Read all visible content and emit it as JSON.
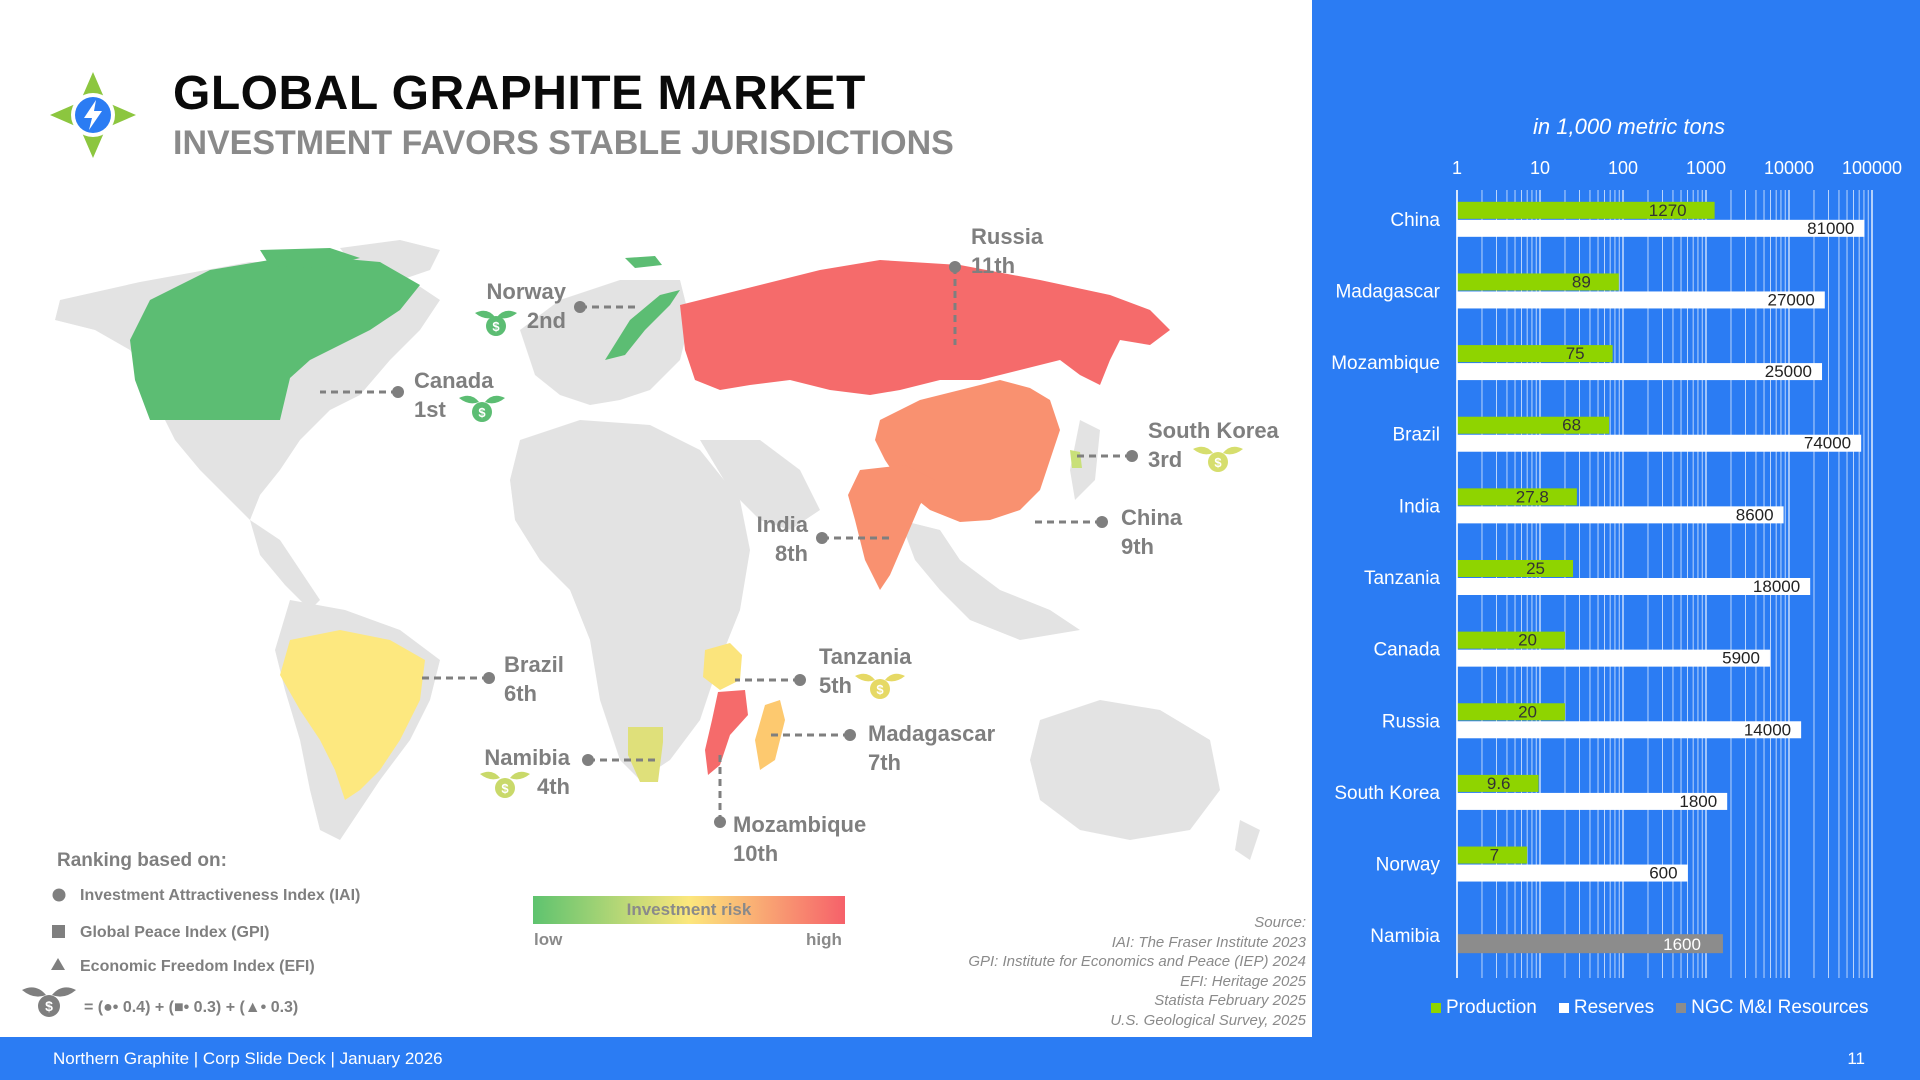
{
  "header": {
    "title": "GLOBAL GRAPHITE MARKET",
    "subtitle": "INVESTMENT FAVORS STABLE JURISDICTIONS"
  },
  "map": {
    "labels": [
      {
        "country": "Russia",
        "rank": "11th",
        "risk_color": "#f56b6b"
      },
      {
        "country": "Norway",
        "rank": "2nd",
        "risk_color": "#5cbd73"
      },
      {
        "country": "Canada",
        "rank": "1st",
        "risk_color": "#5cbd73"
      },
      {
        "country": "South Korea",
        "rank": "3rd",
        "risk_color": "#c9e07a"
      },
      {
        "country": "China",
        "rank": "9th",
        "risk_color": "#f99170"
      },
      {
        "country": "India",
        "rank": "8th",
        "risk_color": "#f99170"
      },
      {
        "country": "Tanzania",
        "rank": "5th",
        "risk_color": "#fbe47c"
      },
      {
        "country": "Brazil",
        "rank": "6th",
        "risk_color": "#fde87f"
      },
      {
        "country": "Namibia",
        "rank": "4th",
        "risk_color": "#dfe07a"
      },
      {
        "country": "Madagascar",
        "rank": "7th",
        "risk_color": "#fdc96f"
      },
      {
        "country": "Mozambique",
        "rank": "10th",
        "risk_color": "#f56b6b"
      }
    ]
  },
  "ranking": {
    "title": "Ranking based on:",
    "items": [
      {
        "icon": "circle-icon",
        "text": "Investment Attractiveness Index (IAI)"
      },
      {
        "icon": "square-icon",
        "text": "Global Peace Index (GPI)"
      },
      {
        "icon": "triangle-icon",
        "text": "Economic Freedom Index (EFI)"
      }
    ],
    "formula": "= (●• 0.4) + (■• 0.3) + (▲• 0.3)"
  },
  "risk_scale": {
    "label": "Investment risk",
    "low": "low",
    "high": "high",
    "colors": [
      "#5ec36f",
      "#fce77c",
      "#f6616a"
    ]
  },
  "source": {
    "lines": [
      "Source:",
      "IAI: The Fraser Institute 2023",
      "GPI: Institute for Economics and Peace (IEP) 2024",
      "EFI: Heritage 2025",
      "Statista February 2025",
      "U.S. Geological Survey, 2025"
    ]
  },
  "chart_data": {
    "type": "bar",
    "orientation": "horizontal",
    "subtitle": "in 1,000 metric tons",
    "x_scale": "log",
    "xlim": [
      1,
      100000
    ],
    "x_ticks": [
      "1",
      "10",
      "100",
      "1000",
      "10000",
      "100000"
    ],
    "categories": [
      "China",
      "Madagascar",
      "Mozambique",
      "Brazil",
      "India",
      "Tanzania",
      "Canada",
      "Russia",
      "South Korea",
      "Norway",
      "Namibia"
    ],
    "series": [
      {
        "name": "Production",
        "color": "#8fd400",
        "values": [
          1270,
          89,
          75,
          68,
          27.8,
          25,
          20,
          20,
          9.6,
          7,
          null
        ],
        "labels": [
          "1270",
          "89",
          "75",
          "68",
          "27.8",
          "25",
          "20",
          "20",
          "9.6",
          "7",
          ""
        ]
      },
      {
        "name": "Reserves",
        "color": "#ffffff",
        "values": [
          81000,
          27000,
          25000,
          74000,
          8600,
          18000,
          5900,
          14000,
          1800,
          600,
          null
        ],
        "labels": [
          "81000",
          "27000",
          "25000",
          "74000",
          "8600",
          "18000",
          "5900",
          "14000",
          "1800",
          "600",
          ""
        ]
      },
      {
        "name": "NGC M&I Resources",
        "color": "#8c8c8c",
        "values": [
          null,
          null,
          null,
          null,
          null,
          null,
          null,
          null,
          null,
          null,
          1600
        ],
        "labels": [
          "",
          "",
          "",
          "",
          "",
          "",
          "",
          "",
          "",
          "",
          "1600"
        ]
      }
    ],
    "legend": "bottom",
    "grid": true
  },
  "footer": {
    "text": "Northern Graphite | Corp Slide Deck | January 2026",
    "page": "11"
  },
  "colors": {
    "accent_blue": "#2b7cf3",
    "logo_green": "#8cc63f"
  }
}
